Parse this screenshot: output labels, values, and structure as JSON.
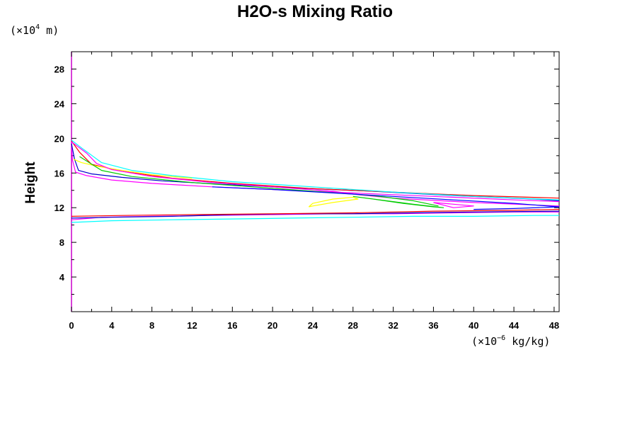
{
  "chart_data": {
    "type": "line",
    "title": "H2O-s Mixing Ratio",
    "ylabel": "Height",
    "xlabel": "",
    "y_unit": {
      "prefix": "(×10",
      "exp": "4",
      "suffix": " m)"
    },
    "x_unit": {
      "prefix": "(×10",
      "exp": "−6",
      "suffix": " kg/kg)"
    },
    "xlim": [
      0,
      48.5
    ],
    "ylim": [
      0,
      30
    ],
    "x_ticks": [
      0,
      4,
      8,
      12,
      16,
      20,
      24,
      28,
      32,
      36,
      40,
      44,
      48
    ],
    "y_ticks": [
      4,
      8,
      12,
      16,
      20,
      24,
      28
    ],
    "grid": false,
    "series": [
      {
        "color": "#ff00ff",
        "x": [
          0.0,
          0.1,
          0.4,
          1.5,
          4,
          8,
          14,
          20,
          28,
          36,
          44,
          48.5
        ],
        "y": [
          19.6,
          17.5,
          16.1,
          15.7,
          15.2,
          14.8,
          14.4,
          14.1,
          13.7,
          13.3,
          12.9,
          12.7
        ]
      },
      {
        "color": "#0000cc",
        "x": [
          0.0,
          0.3,
          0.7,
          2,
          5,
          9,
          15,
          22,
          30,
          38,
          46,
          48.5
        ],
        "y": [
          19.4,
          17.6,
          16.3,
          15.9,
          15.5,
          15.1,
          14.7,
          14.3,
          13.9,
          13.4,
          13.0,
          12.8
        ]
      },
      {
        "color": "#ff0000",
        "x": [
          0.0,
          0.8,
          2,
          5,
          10,
          16,
          24,
          32,
          40,
          48.5
        ],
        "y": [
          19.7,
          18.4,
          17.0,
          16.2,
          15.4,
          14.8,
          14.2,
          13.8,
          13.4,
          13.1
        ]
      },
      {
        "color": "#00ffff",
        "x": [
          0.0,
          1,
          3,
          6,
          10,
          16,
          24,
          32,
          40,
          48.5
        ],
        "y": [
          19.8,
          18.9,
          17.2,
          16.3,
          15.7,
          15.0,
          14.4,
          13.8,
          13.3,
          12.9
        ]
      },
      {
        "color": "#ffff00",
        "x": [
          0.2,
          1,
          2.5,
          5,
          8,
          12
        ],
        "y": [
          17.6,
          17.2,
          16.8,
          16.3,
          15.8,
          15.4
        ]
      },
      {
        "color": "#ff00ff",
        "x": [
          0.0,
          1.5,
          2.5,
          4,
          8,
          14,
          20,
          26,
          28.5,
          32,
          40,
          48.5
        ],
        "y": [
          19.6,
          18.3,
          17.1,
          16.4,
          15.6,
          14.9,
          14.4,
          13.9,
          13.5,
          13.1,
          12.6,
          12.2
        ]
      },
      {
        "color": "#00cc00",
        "x": [
          0.8,
          3,
          6,
          12,
          18,
          24,
          30,
          34,
          36.5
        ],
        "y": [
          17.9,
          16.3,
          15.6,
          14.9,
          14.4,
          13.9,
          13.4,
          12.8,
          12.2
        ]
      },
      {
        "color": "#0000ff",
        "x": [
          14,
          20,
          26,
          32,
          38,
          44,
          48.5
        ],
        "y": [
          14.4,
          14.1,
          13.7,
          13.3,
          12.9,
          12.5,
          12.1
        ]
      },
      {
        "color": "#ffff00",
        "x": [
          23.6,
          24,
          26,
          28,
          28.5,
          26,
          24,
          23.6
        ],
        "y": [
          12.1,
          12.5,
          13.0,
          13.2,
          13.0,
          12.6,
          12.2,
          12.1
        ]
      },
      {
        "color": "#00cc00",
        "x": [
          28,
          30,
          33,
          36,
          37,
          34,
          30,
          28
        ],
        "y": [
          13.3,
          13.0,
          12.5,
          12.1,
          12.0,
          12.4,
          13.0,
          13.3
        ]
      },
      {
        "color": "#ff00ff",
        "x": [
          36,
          38,
          40,
          38,
          36
        ],
        "y": [
          12.6,
          12.4,
          12.2,
          12.0,
          12.6
        ]
      },
      {
        "color": "#00ffff",
        "x": [
          0.0,
          4,
          10,
          16,
          22,
          28,
          34,
          40,
          46,
          48.5
        ],
        "y": [
          10.3,
          10.5,
          10.6,
          10.7,
          10.8,
          10.9,
          11.0,
          11.0,
          11.1,
          11.1
        ]
      },
      {
        "color": "#ff00ff",
        "x": [
          0.0,
          3,
          8,
          14,
          20,
          26,
          32,
          38,
          44,
          48.5
        ],
        "y": [
          10.6,
          10.9,
          11.0,
          11.1,
          11.2,
          11.3,
          11.3,
          11.4,
          11.5,
          11.5
        ]
      },
      {
        "color": "#0000cc",
        "x": [
          0.0,
          4,
          10,
          16,
          22,
          28,
          34,
          40,
          48.5
        ],
        "y": [
          10.8,
          10.9,
          11.0,
          11.2,
          11.3,
          11.3,
          11.4,
          11.5,
          11.6
        ]
      },
      {
        "color": "#ff0000",
        "x": [
          0.0,
          5,
          12,
          20,
          28,
          36,
          44,
          48.5
        ],
        "y": [
          11.0,
          11.1,
          11.2,
          11.3,
          11.4,
          11.6,
          11.7,
          11.8
        ]
      },
      {
        "color": "#0000ff",
        "x": [
          40,
          44,
          48.5
        ],
        "y": [
          11.8,
          11.9,
          12.1
        ]
      }
    ]
  }
}
